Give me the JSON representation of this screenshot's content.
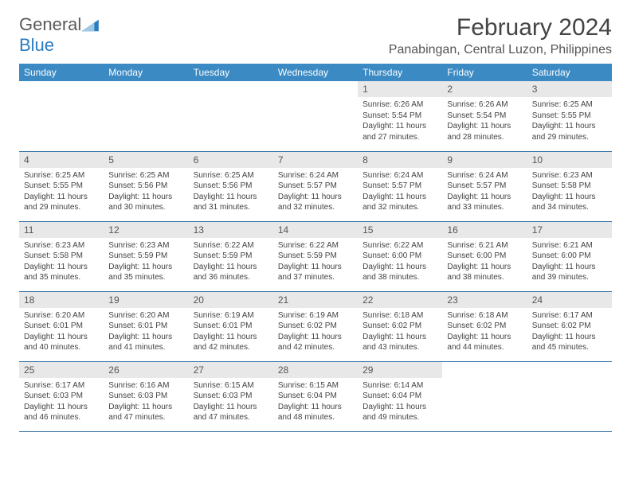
{
  "brand": {
    "general": "General",
    "blue": "Blue"
  },
  "title": "February 2024",
  "location": "Panabingan, Central Luzon, Philippines",
  "colors": {
    "header_bg": "#3b8ac4",
    "header_text": "#ffffff",
    "daynum_bg": "#e8e8e8",
    "rule": "#2b6ca3",
    "text": "#444444",
    "logo_blue": "#2b7bbf"
  },
  "weekdays": [
    "Sunday",
    "Monday",
    "Tuesday",
    "Wednesday",
    "Thursday",
    "Friday",
    "Saturday"
  ],
  "weeks": [
    [
      null,
      null,
      null,
      null,
      {
        "n": "1",
        "sr": "Sunrise: 6:26 AM",
        "ss": "Sunset: 5:54 PM",
        "dl": "Daylight: 11 hours and 27 minutes."
      },
      {
        "n": "2",
        "sr": "Sunrise: 6:26 AM",
        "ss": "Sunset: 5:54 PM",
        "dl": "Daylight: 11 hours and 28 minutes."
      },
      {
        "n": "3",
        "sr": "Sunrise: 6:25 AM",
        "ss": "Sunset: 5:55 PM",
        "dl": "Daylight: 11 hours and 29 minutes."
      }
    ],
    [
      {
        "n": "4",
        "sr": "Sunrise: 6:25 AM",
        "ss": "Sunset: 5:55 PM",
        "dl": "Daylight: 11 hours and 29 minutes."
      },
      {
        "n": "5",
        "sr": "Sunrise: 6:25 AM",
        "ss": "Sunset: 5:56 PM",
        "dl": "Daylight: 11 hours and 30 minutes."
      },
      {
        "n": "6",
        "sr": "Sunrise: 6:25 AM",
        "ss": "Sunset: 5:56 PM",
        "dl": "Daylight: 11 hours and 31 minutes."
      },
      {
        "n": "7",
        "sr": "Sunrise: 6:24 AM",
        "ss": "Sunset: 5:57 PM",
        "dl": "Daylight: 11 hours and 32 minutes."
      },
      {
        "n": "8",
        "sr": "Sunrise: 6:24 AM",
        "ss": "Sunset: 5:57 PM",
        "dl": "Daylight: 11 hours and 32 minutes."
      },
      {
        "n": "9",
        "sr": "Sunrise: 6:24 AM",
        "ss": "Sunset: 5:57 PM",
        "dl": "Daylight: 11 hours and 33 minutes."
      },
      {
        "n": "10",
        "sr": "Sunrise: 6:23 AM",
        "ss": "Sunset: 5:58 PM",
        "dl": "Daylight: 11 hours and 34 minutes."
      }
    ],
    [
      {
        "n": "11",
        "sr": "Sunrise: 6:23 AM",
        "ss": "Sunset: 5:58 PM",
        "dl": "Daylight: 11 hours and 35 minutes."
      },
      {
        "n": "12",
        "sr": "Sunrise: 6:23 AM",
        "ss": "Sunset: 5:59 PM",
        "dl": "Daylight: 11 hours and 35 minutes."
      },
      {
        "n": "13",
        "sr": "Sunrise: 6:22 AM",
        "ss": "Sunset: 5:59 PM",
        "dl": "Daylight: 11 hours and 36 minutes."
      },
      {
        "n": "14",
        "sr": "Sunrise: 6:22 AM",
        "ss": "Sunset: 5:59 PM",
        "dl": "Daylight: 11 hours and 37 minutes."
      },
      {
        "n": "15",
        "sr": "Sunrise: 6:22 AM",
        "ss": "Sunset: 6:00 PM",
        "dl": "Daylight: 11 hours and 38 minutes."
      },
      {
        "n": "16",
        "sr": "Sunrise: 6:21 AM",
        "ss": "Sunset: 6:00 PM",
        "dl": "Daylight: 11 hours and 38 minutes."
      },
      {
        "n": "17",
        "sr": "Sunrise: 6:21 AM",
        "ss": "Sunset: 6:00 PM",
        "dl": "Daylight: 11 hours and 39 minutes."
      }
    ],
    [
      {
        "n": "18",
        "sr": "Sunrise: 6:20 AM",
        "ss": "Sunset: 6:01 PM",
        "dl": "Daylight: 11 hours and 40 minutes."
      },
      {
        "n": "19",
        "sr": "Sunrise: 6:20 AM",
        "ss": "Sunset: 6:01 PM",
        "dl": "Daylight: 11 hours and 41 minutes."
      },
      {
        "n": "20",
        "sr": "Sunrise: 6:19 AM",
        "ss": "Sunset: 6:01 PM",
        "dl": "Daylight: 11 hours and 42 minutes."
      },
      {
        "n": "21",
        "sr": "Sunrise: 6:19 AM",
        "ss": "Sunset: 6:02 PM",
        "dl": "Daylight: 11 hours and 42 minutes."
      },
      {
        "n": "22",
        "sr": "Sunrise: 6:18 AM",
        "ss": "Sunset: 6:02 PM",
        "dl": "Daylight: 11 hours and 43 minutes."
      },
      {
        "n": "23",
        "sr": "Sunrise: 6:18 AM",
        "ss": "Sunset: 6:02 PM",
        "dl": "Daylight: 11 hours and 44 minutes."
      },
      {
        "n": "24",
        "sr": "Sunrise: 6:17 AM",
        "ss": "Sunset: 6:02 PM",
        "dl": "Daylight: 11 hours and 45 minutes."
      }
    ],
    [
      {
        "n": "25",
        "sr": "Sunrise: 6:17 AM",
        "ss": "Sunset: 6:03 PM",
        "dl": "Daylight: 11 hours and 46 minutes."
      },
      {
        "n": "26",
        "sr": "Sunrise: 6:16 AM",
        "ss": "Sunset: 6:03 PM",
        "dl": "Daylight: 11 hours and 47 minutes."
      },
      {
        "n": "27",
        "sr": "Sunrise: 6:15 AM",
        "ss": "Sunset: 6:03 PM",
        "dl": "Daylight: 11 hours and 47 minutes."
      },
      {
        "n": "28",
        "sr": "Sunrise: 6:15 AM",
        "ss": "Sunset: 6:04 PM",
        "dl": "Daylight: 11 hours and 48 minutes."
      },
      {
        "n": "29",
        "sr": "Sunrise: 6:14 AM",
        "ss": "Sunset: 6:04 PM",
        "dl": "Daylight: 11 hours and 49 minutes."
      },
      null,
      null
    ]
  ]
}
